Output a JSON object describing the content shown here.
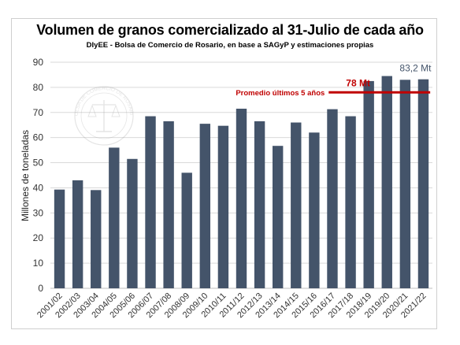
{
  "chart_data": {
    "type": "bar",
    "title": "Volumen de granos comercializado al 31-Julio de cada año",
    "subtitle": "DIyEE - Bolsa de Comercio de Rosario, en base a SAGyP y estimaciones propias",
    "xlabel": "",
    "ylabel": "Millones de toneladas",
    "ylim": [
      0,
      90
    ],
    "yticks": [
      0,
      10,
      20,
      30,
      40,
      50,
      60,
      70,
      80,
      90
    ],
    "grid": true,
    "legend": "none",
    "bar_color": "#44546a",
    "categories": [
      "2001/02",
      "2002/03",
      "2003/04",
      "2004/05",
      "2005/06",
      "2006/07",
      "2007/08",
      "2008/09",
      "2009/10",
      "2010/11",
      "2011/12",
      "2012/13",
      "2013/14",
      "2014/15",
      "2015/16",
      "2016/17",
      "2017/18",
      "2018/19",
      "2019/20",
      "2020/21",
      "2021/22"
    ],
    "values": [
      39.3,
      43.0,
      39.1,
      56.0,
      51.5,
      68.5,
      66.5,
      46.0,
      65.5,
      64.7,
      71.5,
      66.5,
      56.7,
      66.0,
      62.0,
      71.3,
      68.5,
      82.5,
      84.5,
      83.0,
      83.2
    ],
    "reference_line": {
      "label": "Promedio últimos 5 años",
      "value": 78,
      "value_label": "78 Mt",
      "color": "#c00000",
      "from_category": "2016/17",
      "to_category": "2021/22"
    },
    "annotations": [
      {
        "category": "2021/22",
        "text": "83,2 Mt"
      }
    ]
  },
  "watermark": {
    "text": "BOLSA DE COMERCIO DE ROSARIO"
  }
}
